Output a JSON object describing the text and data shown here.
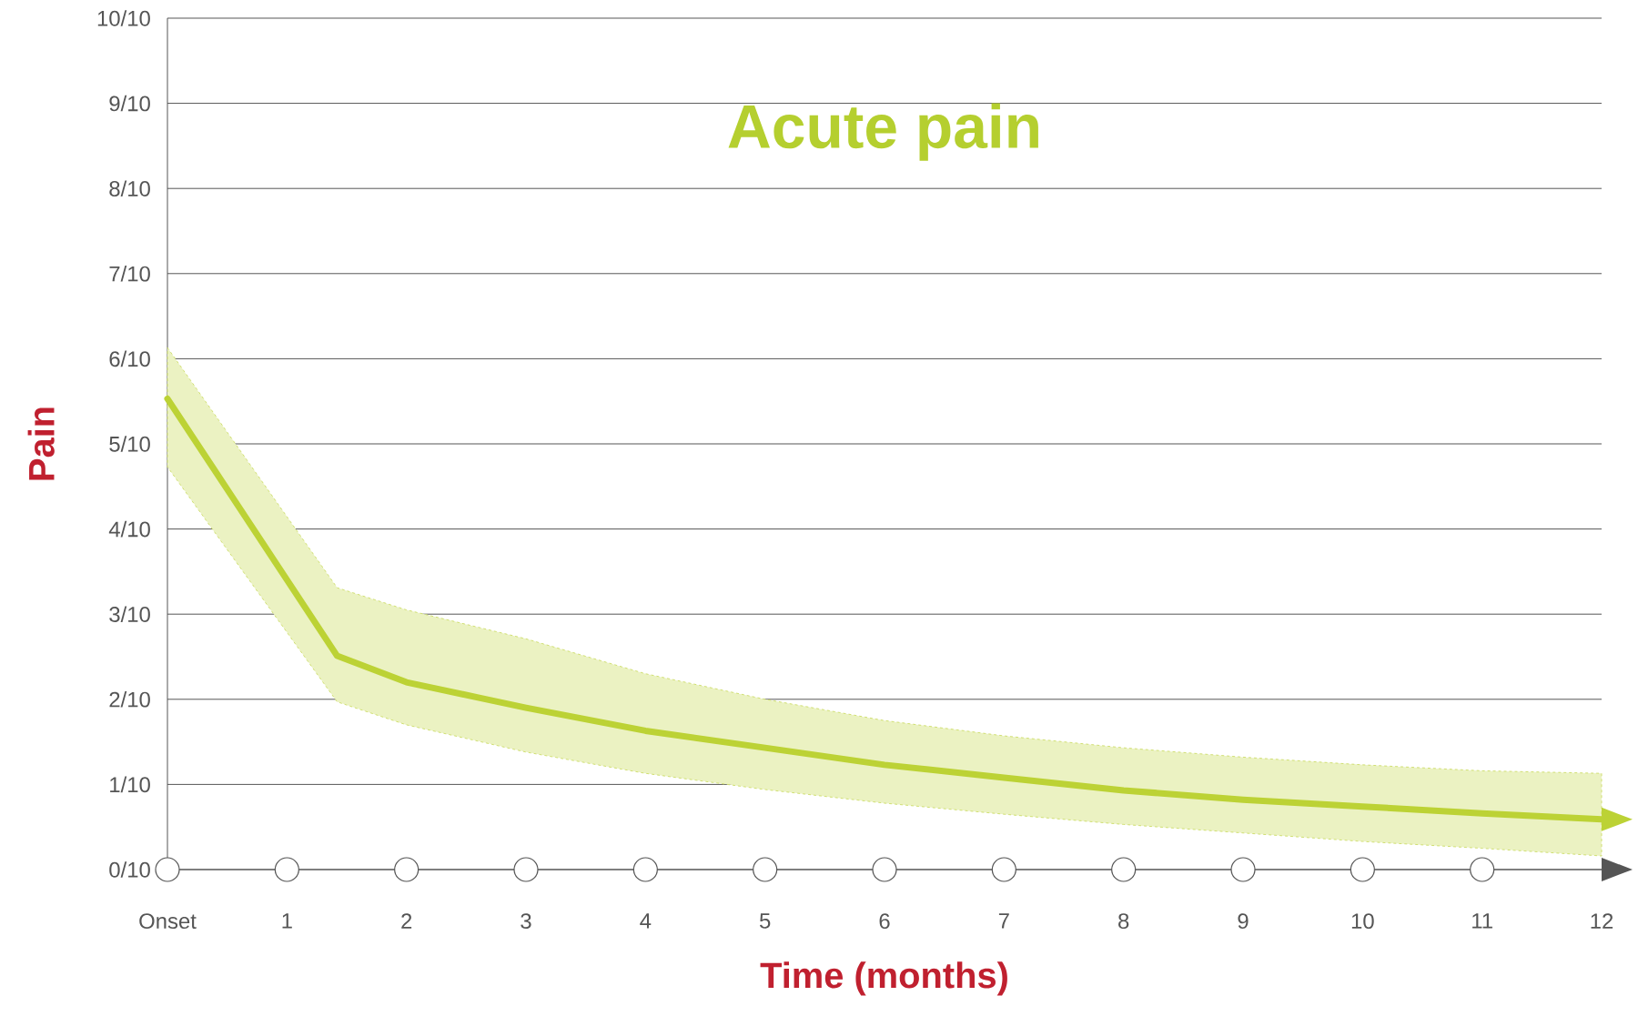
{
  "chart_data": {
    "type": "line",
    "title": "Acute pain",
    "xlabel": "Time (months)",
    "ylabel": "Pain",
    "xlim": [
      0,
      12
    ],
    "ylim": [
      0,
      1
    ],
    "xticks": [
      {
        "value": 0,
        "label": "Onset"
      },
      1,
      2,
      3,
      4,
      5,
      6,
      7,
      8,
      9,
      10,
      11,
      12
    ],
    "yticks": [
      {
        "value": 0,
        "label": "0/10"
      },
      {
        "value": 0.1,
        "label": "1/10"
      },
      {
        "value": 0.2,
        "label": "2/10"
      },
      {
        "value": 0.3,
        "label": "3/10"
      },
      {
        "value": 0.4,
        "label": "4/10"
      },
      {
        "value": 0.5,
        "label": "5/10"
      },
      {
        "value": 0.6,
        "label": "6/10"
      },
      {
        "value": 0.7,
        "label": "7/10"
      },
      {
        "value": 0.8,
        "label": "8/10"
      },
      {
        "value": 0.9,
        "label": "9/10"
      },
      {
        "value": 1,
        "label": "10/10"
      }
    ],
    "grid": "y",
    "marker": "none",
    "line_style": "solid",
    "series": [
      {
        "color": "#bcd235",
        "x": [
          0,
          1.42,
          2,
          3,
          4,
          5,
          6,
          7,
          8,
          9,
          10,
          11,
          12
        ],
        "values": [
          0.553,
          0.251,
          0.22,
          0.19,
          0.163,
          0.143,
          0.123,
          0.108,
          0.093,
          0.082,
          0.074,
          0.066,
          0.059
        ],
        "lower": [
          0.473,
          0.197,
          0.17,
          0.138,
          0.113,
          0.094,
          0.078,
          0.065,
          0.053,
          0.043,
          0.033,
          0.025,
          0.016
        ],
        "upper": [
          0.613,
          0.331,
          0.305,
          0.271,
          0.23,
          0.2,
          0.175,
          0.157,
          0.143,
          0.132,
          0.123,
          0.116,
          0.113
        ]
      }
    ]
  }
}
